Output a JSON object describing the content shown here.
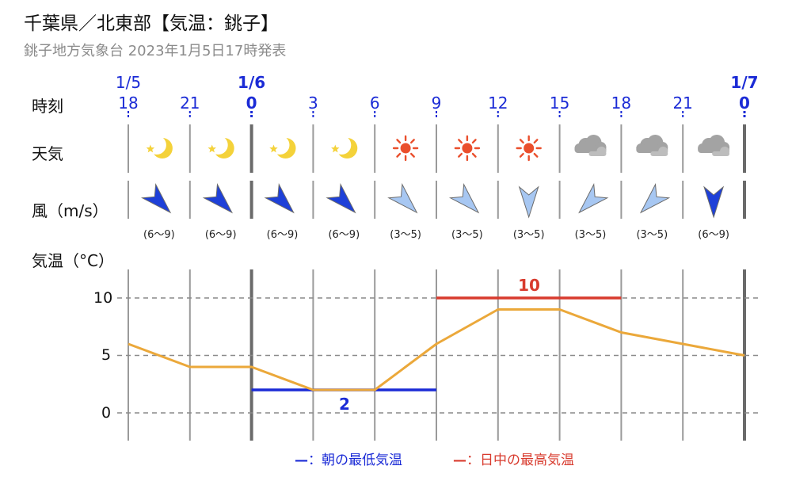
{
  "header": {
    "title": "千葉県／北東部【気温：銚子】",
    "subtitle": "銚子地方気象台 2023年1月5日17時発表"
  },
  "row_labels": {
    "time": "時刻",
    "weather": "天気",
    "wind": "風（m/s）",
    "temperature": "気温（°C）"
  },
  "dates": [
    {
      "label": "1/5",
      "col": 0,
      "bold": false
    },
    {
      "label": "1/6",
      "col": 2,
      "bold": true
    },
    {
      "label": "1/7",
      "col": 10,
      "bold": true
    }
  ],
  "hours": [
    "18",
    "21",
    "0",
    "3",
    "6",
    "9",
    "12",
    "15",
    "18",
    "21",
    "0"
  ],
  "weather_icons": [
    "clear-night-icon",
    "clear-night-icon",
    "clear-night-icon",
    "clear-night-icon",
    "sunny-icon",
    "sunny-icon",
    "sunny-icon",
    "cloudy-icon",
    "cloudy-icon",
    "cloudy-icon"
  ],
  "wind": [
    {
      "speed": "(6～9)",
      "direction": "northwest",
      "strength": "strong"
    },
    {
      "speed": "(6～9)",
      "direction": "northwest",
      "strength": "strong"
    },
    {
      "speed": "(6～9)",
      "direction": "northwest",
      "strength": "strong"
    },
    {
      "speed": "(6～9)",
      "direction": "northwest",
      "strength": "strong"
    },
    {
      "speed": "(3～5)",
      "direction": "northwest",
      "strength": "light"
    },
    {
      "speed": "(3～5)",
      "direction": "northwest",
      "strength": "light"
    },
    {
      "speed": "(3～5)",
      "direction": "north",
      "strength": "light"
    },
    {
      "speed": "(3～5)",
      "direction": "northeast",
      "strength": "light"
    },
    {
      "speed": "(3～5)",
      "direction": "northeast",
      "strength": "light"
    },
    {
      "speed": "(6～9)",
      "direction": "north",
      "strength": "strong"
    }
  ],
  "colors": {
    "accent_blue": "#1b2bd6",
    "max_red": "#d83b2e",
    "temp_line": "#eba83a",
    "wind_strong": "#1e40d8",
    "wind_light": "#a7c7f2"
  },
  "chart_data": {
    "type": "line",
    "x": [
      "1/5 18",
      "1/5 21",
      "1/6 0",
      "1/6 3",
      "1/6 6",
      "1/6 9",
      "1/6 12",
      "1/6 15",
      "1/6 18",
      "1/6 21",
      "1/7 0"
    ],
    "series": [
      {
        "values": [
          6,
          4,
          4,
          2,
          2,
          6,
          9,
          9,
          7,
          6,
          5
        ]
      }
    ],
    "y_ticks": [
      "10",
      "5",
      "0"
    ],
    "ylim": [
      -2.5,
      12.5
    ],
    "grid": true,
    "min_temp": {
      "value": "2",
      "from": "1/6 0",
      "to": "1/6 9"
    },
    "max_temp": {
      "value": "10",
      "from": "1/6 9",
      "to": "1/6 18"
    },
    "legend": [
      {
        "swatch": "—",
        "label": "：朝の最低気温",
        "color": "#1b2bd6"
      },
      {
        "swatch": "—",
        "label": "：日中の最高気温",
        "color": "#d83b2e"
      }
    ]
  }
}
